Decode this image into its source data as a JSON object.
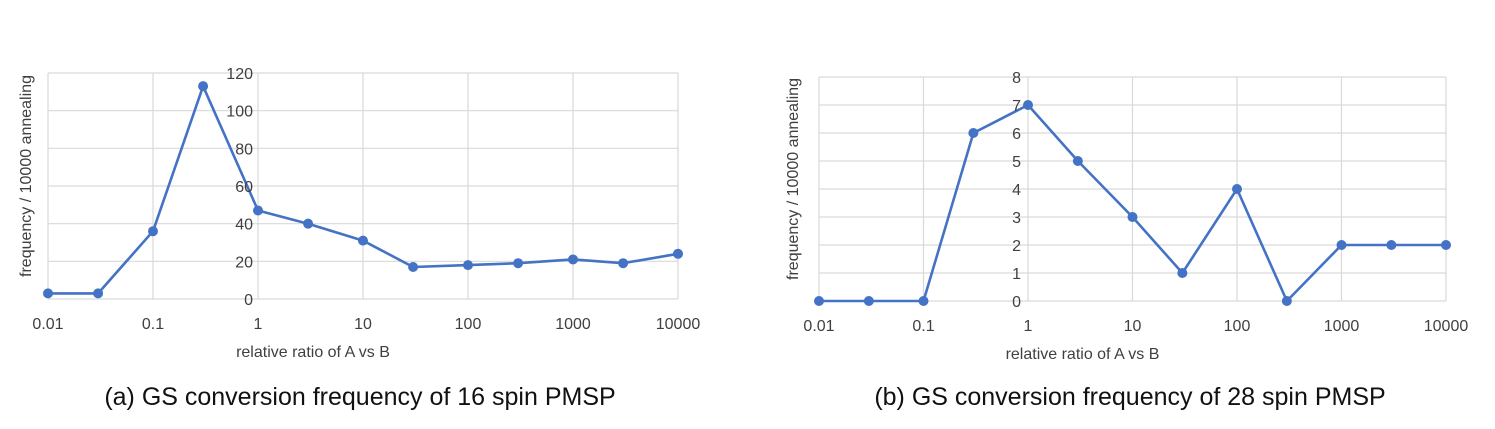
{
  "chart_data": [
    {
      "type": "line",
      "xscale": "log",
      "xlim": [
        0.01,
        10000
      ],
      "ylim": [
        0,
        120
      ],
      "x_ticks": [
        "0.01",
        "0.1",
        "1",
        "10",
        "100",
        "1000",
        "10000"
      ],
      "y_ticks": [
        "0",
        "20",
        "40",
        "60",
        "80",
        "100",
        "120"
      ],
      "xlabel": "relative ratio of A  vs B",
      "ylabel": "frequency / 10000 annealing",
      "caption": "(a) GS conversion frequency of 16 spin PMSP",
      "grid": true,
      "color": "#4472c4",
      "series": [
        {
          "x": [
            0.01,
            0.03,
            0.1,
            0.3,
            1,
            3,
            10,
            30,
            100,
            300,
            1000,
            3000,
            10000
          ],
          "y": [
            3,
            3,
            36,
            113,
            47,
            40,
            31,
            17,
            18,
            19,
            21,
            19,
            24
          ]
        }
      ]
    },
    {
      "type": "line",
      "xscale": "log",
      "xlim": [
        0.01,
        10000
      ],
      "ylim": [
        0,
        8
      ],
      "x_ticks": [
        "0.01",
        "0.1",
        "1",
        "10",
        "100",
        "1000",
        "10000"
      ],
      "y_ticks": [
        "0",
        "1",
        "2",
        "3",
        "4",
        "5",
        "6",
        "7",
        "8"
      ],
      "xlabel": "relative ratio of A  vs B",
      "ylabel": "frequency / 10000 annealing",
      "caption": "(b) GS conversion frequency of 28 spin PMSP",
      "grid": true,
      "color": "#4472c4",
      "series": [
        {
          "x": [
            0.01,
            0.03,
            0.1,
            0.3,
            1,
            3,
            10,
            30,
            100,
            300,
            1000,
            3000,
            10000
          ],
          "y": [
            0,
            0,
            0,
            6,
            7,
            5,
            3,
            1,
            4,
            0,
            2,
            2,
            2
          ]
        }
      ]
    }
  ]
}
